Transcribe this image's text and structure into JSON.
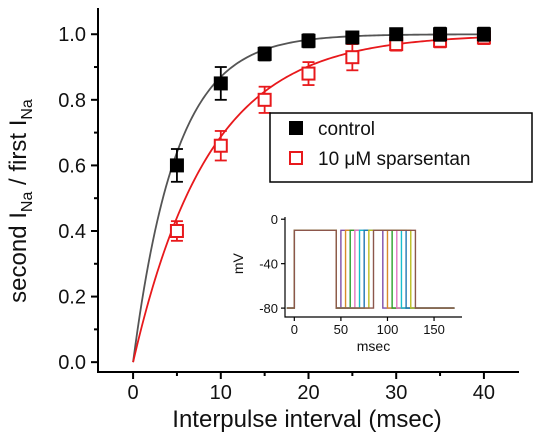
{
  "chart_data": {
    "type": "scatter",
    "xlabel": "Interpulse interval (msec)",
    "ylabel_parts": [
      "second I",
      "Na",
      " / first I",
      "Na"
    ],
    "xlim": [
      -4,
      44
    ],
    "ylim": [
      -0.03,
      1.08
    ],
    "xticks": [
      0,
      10,
      20,
      30,
      40
    ],
    "yticks": [
      0.0,
      0.2,
      0.4,
      0.6,
      0.8,
      1.0
    ],
    "xtick_labels": [
      "0",
      "10",
      "20",
      "30",
      "40"
    ],
    "ytick_labels": [
      "0.0",
      "0.2",
      "0.4",
      "0.6",
      "0.8",
      "1.0"
    ],
    "colors": {
      "control": "#000000",
      "sparsentan": "#e8191c",
      "control_fit": "#555555"
    },
    "series": [
      {
        "name": "control",
        "marker": "filled-square",
        "x": [
          5,
          10,
          15,
          20,
          25,
          30,
          35,
          40
        ],
        "y": [
          0.6,
          0.85,
          0.94,
          0.98,
          0.99,
          1.0,
          1.0,
          1.0
        ],
        "err": [
          0.05,
          0.05,
          0.02,
          0.02,
          0.015,
          0.015,
          0.02,
          0.02
        ],
        "fit_tau": 4.9
      },
      {
        "name_parts": [
          "10 ",
          "μ",
          "M sparsentan"
        ],
        "marker": "open-square",
        "x": [
          5,
          10,
          15,
          20,
          25,
          30,
          35,
          40
        ],
        "y": [
          0.4,
          0.66,
          0.8,
          0.88,
          0.93,
          0.97,
          0.98,
          0.99
        ],
        "err": [
          0.03,
          0.045,
          0.04,
          0.035,
          0.04,
          0.02,
          0.02,
          0.02
        ],
        "fit_tau": 8.6
      }
    ],
    "legend_position": "center-right",
    "inset": {
      "type": "line",
      "xlabel": "msec",
      "ylabel": "mV",
      "xlim": [
        -10,
        180
      ],
      "ylim": [
        -88,
        2
      ],
      "xticks": [
        0,
        50,
        100,
        150
      ],
      "yticks": [
        0,
        -40,
        -80
      ],
      "xtick_labels": [
        "0",
        "50",
        "100",
        "150"
      ],
      "ytick_labels": [
        "0",
        "-40",
        "-80"
      ],
      "holding_mv": -80,
      "step_mv": -10,
      "first_pulse_ms": [
        0,
        45
      ],
      "second_pulse_duration_ms": 45,
      "interpulse_intervals_ms": [
        5,
        10,
        15,
        20,
        25,
        30,
        35,
        40
      ],
      "trace_colors": [
        "#7f4ea8",
        "#d98a2a",
        "#2ca02c",
        "#e377c2",
        "#17becf",
        "#1f77b4",
        "#bcbd22",
        "#8c564b"
      ]
    }
  }
}
